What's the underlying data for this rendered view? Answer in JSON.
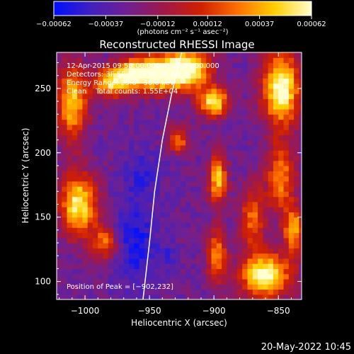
{
  "chart_data": {
    "type": "heatmap",
    "title": "Reconstructed RHESSI Image",
    "xlabel": "Heliocentric X (arcsec)",
    "ylabel": "Heliocentric Y (arcsec)",
    "xlim": [
      -1022,
      -832
    ],
    "ylim": [
      86,
      278
    ],
    "x_ticks": [
      -1000,
      -950,
      -900,
      -850
    ],
    "x_tick_labels": [
      "−1000",
      "−950",
      "−900",
      "−850"
    ],
    "y_ticks": [
      100,
      150,
      200,
      250
    ],
    "y_tick_labels": [
      "100",
      "150",
      "200",
      "250"
    ],
    "colorbar": {
      "range": [
        -0.00062,
        0.00062
      ],
      "ticks": [
        -0.00062,
        -0.00037,
        -0.00012,
        0.00012,
        0.00037,
        0.00062
      ],
      "tick_labels": [
        "−0.00062",
        "−0.00037",
        "−0.00012",
        "0.00012",
        "0.00037",
        "0.00062"
      ],
      "unit_label": "(photons cm⁻² s⁻¹ asec⁻²)",
      "colormap": [
        "#0010ff",
        "#4020c0",
        "#702090",
        "#a01848",
        "#d02000",
        "#ff7000",
        "#ffd000",
        "#ffffd0"
      ]
    },
    "annotations": {
      "time_range": "12-Apr-2015 09:58:00.000 to 10:04:00.000",
      "detectors": "Detectors: 3F 5F 6F 7F 8F 9F Att 1",
      "energy": "Energy Range: 25.0 - 50.0 keV",
      "method": "Clean    Total counts: 1.55E+04",
      "peak": "Position of Peak = [−902,232]"
    },
    "limb_curve": [
      [
        -955,
        86
      ],
      [
        -950,
        130
      ],
      [
        -946,
        170
      ],
      [
        -940,
        210
      ],
      [
        -933,
        245
      ],
      [
        -925,
        278
      ]
    ],
    "emission_regions": [
      {
        "x": -1005,
        "y": 160,
        "rx": 15,
        "ry": 25,
        "level": 0.9
      },
      {
        "x": -1010,
        "y": 240,
        "rx": 12,
        "ry": 30,
        "level": 0.8
      },
      {
        "x": -985,
        "y": 130,
        "rx": 10,
        "ry": 14,
        "level": 0.55
      },
      {
        "x": -980,
        "y": 255,
        "rx": 15,
        "ry": 12,
        "level": 0.8
      },
      {
        "x": -962,
        "y": 262,
        "rx": 14,
        "ry": 12,
        "level": 0.85
      },
      {
        "x": -942,
        "y": 262,
        "rx": 18,
        "ry": 14,
        "level": 0.9
      },
      {
        "x": -920,
        "y": 265,
        "rx": 18,
        "ry": 16,
        "level": 1.0
      },
      {
        "x": -928,
        "y": 210,
        "rx": 8,
        "ry": 10,
        "level": 0.6
      },
      {
        "x": -900,
        "y": 240,
        "rx": 12,
        "ry": 12,
        "level": 0.9
      },
      {
        "x": -897,
        "y": 180,
        "rx": 7,
        "ry": 20,
        "level": 0.8
      },
      {
        "x": -898,
        "y": 120,
        "rx": 8,
        "ry": 20,
        "level": 0.65
      },
      {
        "x": -870,
        "y": 150,
        "rx": 10,
        "ry": 25,
        "level": 0.55
      },
      {
        "x": -848,
        "y": 250,
        "rx": 15,
        "ry": 30,
        "level": 1.0
      },
      {
        "x": -848,
        "y": 180,
        "rx": 12,
        "ry": 28,
        "level": 0.6
      },
      {
        "x": -860,
        "y": 105,
        "rx": 20,
        "ry": 18,
        "level": 1.0
      },
      {
        "x": -838,
        "y": 140,
        "rx": 8,
        "ry": 18,
        "level": 0.7
      }
    ],
    "cold_regions": [
      {
        "x": -960,
        "y": 130,
        "rx": 16,
        "ry": 35,
        "level": 0.9
      },
      {
        "x": -955,
        "y": 185,
        "rx": 14,
        "ry": 18,
        "level": 0.6
      },
      {
        "x": -935,
        "y": 120,
        "rx": 8,
        "ry": 12,
        "level": 0.45
      }
    ]
  },
  "timestamp": "20-May-2022 10:45"
}
